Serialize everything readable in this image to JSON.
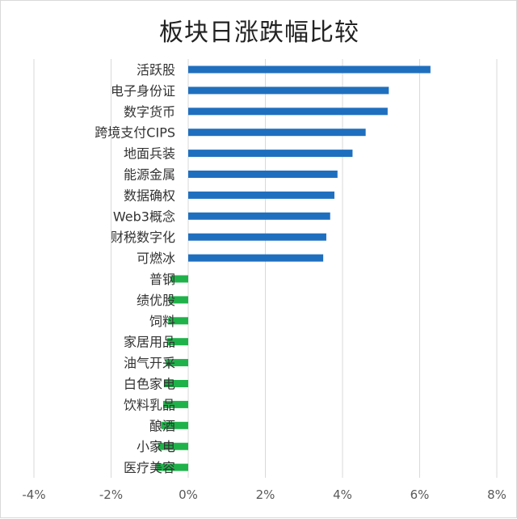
{
  "chart_data": {
    "type": "bar",
    "orientation": "horizontal",
    "title": "板块日涨跌幅比较",
    "categories": [
      "活跃股",
      "电子身份证",
      "数字货币",
      "跨境支付CIPS",
      "地面兵装",
      "能源金属",
      "数据确权",
      "Web3概念",
      "财税数字化",
      "可燃冰",
      "普钢",
      "绩优股",
      "饲料",
      "家居用品",
      "油气开采",
      "白色家电",
      "饮料乳品",
      "酿酒",
      "小家电",
      "医疗美容"
    ],
    "values": [
      6.28,
      5.2,
      5.17,
      4.6,
      4.26,
      3.87,
      3.79,
      3.68,
      3.58,
      3.5,
      -0.45,
      -0.5,
      -0.52,
      -0.55,
      -0.58,
      -0.63,
      -0.65,
      -0.7,
      -0.78,
      -0.82
    ],
    "x_ticks": [
      "-4%",
      "-2%",
      "0%",
      "2%",
      "4%",
      "6%",
      "8%"
    ],
    "xlim": [
      -4,
      8
    ],
    "grid": "vertical",
    "colors": {
      "positive": "#1f6fbf",
      "negative": "#1fb24a",
      "grid": "#d9d9d9"
    }
  }
}
